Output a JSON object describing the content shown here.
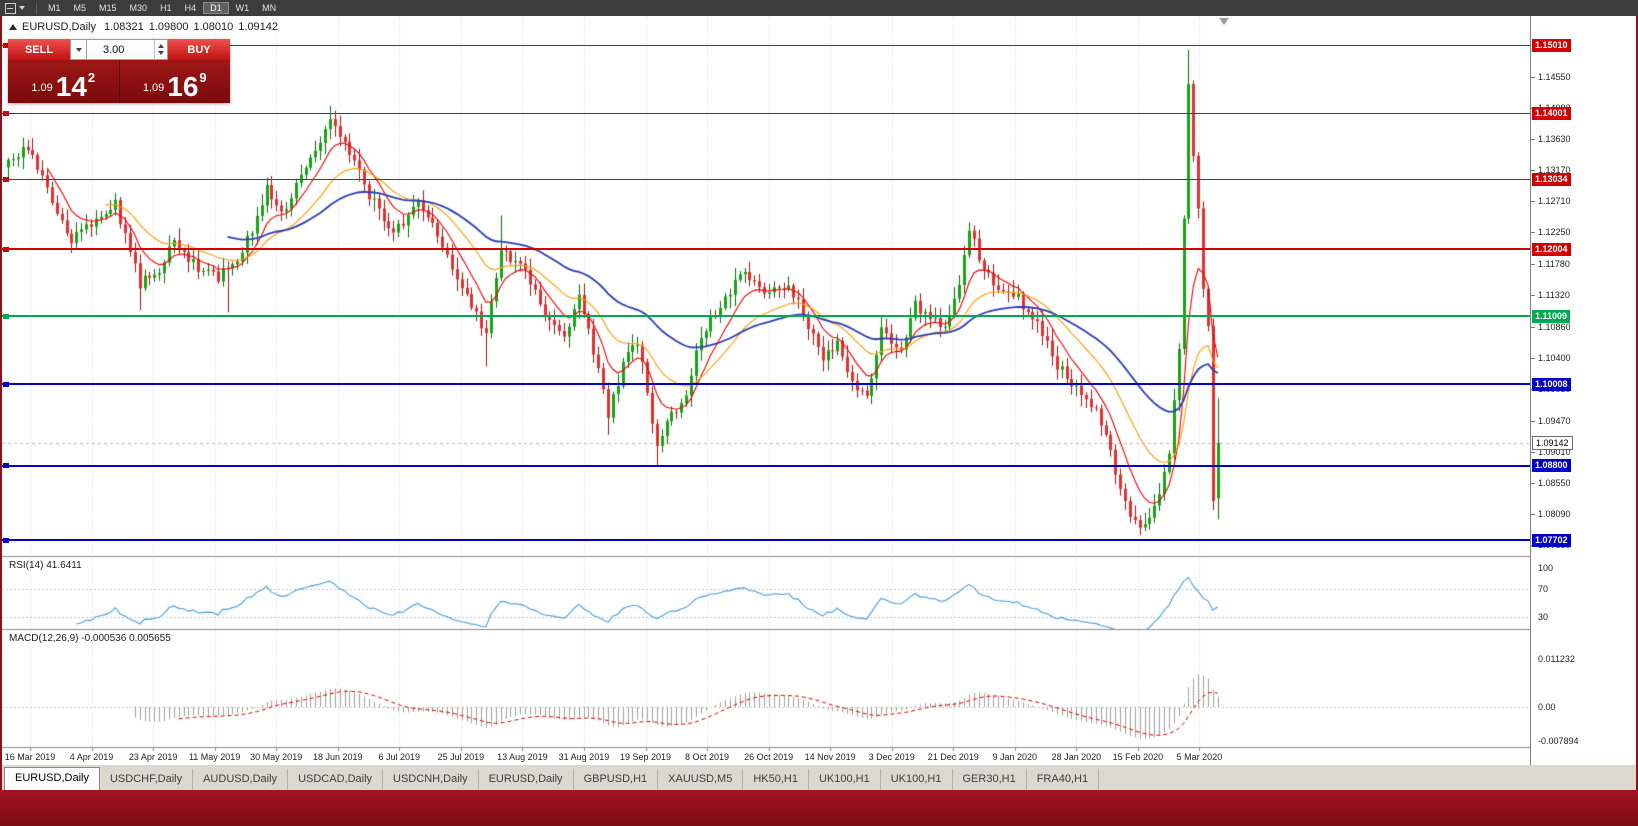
{
  "window": {
    "frame_color": "#8e1119"
  },
  "toolbar": {
    "timeframes": [
      "M1",
      "M5",
      "M15",
      "M30",
      "H1",
      "H4",
      "D1",
      "W1",
      "MN"
    ],
    "active_timeframe": "D1"
  },
  "chart_header": {
    "symbol": "EURUSD,Daily",
    "open": "1.08321",
    "high": "1.09800",
    "low": "1.08010",
    "close": "1.09142"
  },
  "one_click": {
    "sell_label": "SELL",
    "buy_label": "BUY",
    "volume": "3.00",
    "bid": {
      "prefix": "1.09",
      "big": "14",
      "sup": "2"
    },
    "ask": {
      "prefix": "1.09",
      "big": "16",
      "sup": "9"
    }
  },
  "price_axis": {
    "ticks": [
      "1.14550",
      "1.14090",
      "1.13630",
      "1.13170",
      "1.12710",
      "1.12250",
      "1.11780",
      "1.11320",
      "1.10860",
      "1.10400",
      "1.09930",
      "1.09470",
      "1.09010",
      "1.08550",
      "1.08090",
      "1.07630"
    ],
    "current": "1.09142"
  },
  "date_axis": {
    "labels": [
      "16 Mar 2019",
      "4 Apr 2019",
      "23 Apr 2019",
      "11 May 2019",
      "30 May 2019",
      "18 Jun 2019",
      "6 Jul 2019",
      "25 Jul 2019",
      "13 Aug 2019",
      "31 Aug 2019",
      "19 Sep 2019",
      "8 Oct 2019",
      "26 Oct 2019",
      "14 Nov 2019",
      "3 Dec 2019",
      "21 Dec 2019",
      "9 Jan 2020",
      "28 Jan 2020",
      "15 Feb 2020",
      "5 Mar 2020"
    ]
  },
  "rsi_panel": {
    "title": "RSI(14) 41.6411",
    "axis_labels": [
      "100",
      "70",
      "30"
    ]
  },
  "macd_panel": {
    "title": "MACD(12,26,9) -0.000536 0.005655",
    "axis_labels": [
      "0.011232",
      "0.00",
      "-0.007894"
    ]
  },
  "tabs": [
    "EURUSD,Daily",
    "USDCHF,Daily",
    "AUDUSD,Daily",
    "USDCAD,Daily",
    "USDCNH,Daily",
    "EURUSD,Daily",
    "GBPUSD,H1",
    "XAUUSD,M5",
    "HK50,H1",
    "UK100,H1",
    "UK100,H1",
    "GER30,H1",
    "FRA40,H1"
  ],
  "active_tab": 0,
  "chart_data": {
    "type": "candlestick",
    "symbol": "EURUSD",
    "timeframe": "Daily",
    "n_candles": 249,
    "price_range": [
      1.07469,
      1.15449
    ],
    "last_candle": {
      "open": 1.08321,
      "high": 1.098,
      "low": 1.0801,
      "close": 1.09142
    },
    "current_price": 1.09142,
    "close_anchors": [
      [
        0,
        1.1325
      ],
      [
        4,
        1.135
      ],
      [
        9,
        1.127
      ],
      [
        13,
        1.1215
      ],
      [
        17,
        1.124
      ],
      [
        22,
        1.1268
      ],
      [
        27,
        1.115
      ],
      [
        31,
        1.1172
      ],
      [
        34,
        1.1212
      ],
      [
        38,
        1.1178
      ],
      [
        43,
        1.116
      ],
      [
        47,
        1.1188
      ],
      [
        50,
        1.1225
      ],
      [
        53,
        1.1295
      ],
      [
        56,
        1.125
      ],
      [
        60,
        1.131
      ],
      [
        66,
        1.139
      ],
      [
        69,
        1.1358
      ],
      [
        74,
        1.1282
      ],
      [
        79,
        1.1222
      ],
      [
        84,
        1.1268
      ],
      [
        89,
        1.1208
      ],
      [
        93,
        1.114
      ],
      [
        98,
        1.1078
      ],
      [
        101,
        1.1198
      ],
      [
        106,
        1.1168
      ],
      [
        111,
        1.1092
      ],
      [
        114,
        1.1068
      ],
      [
        117,
        1.1138
      ],
      [
        120,
        1.1052
      ],
      [
        123,
        1.0952
      ],
      [
        126,
        1.1032
      ],
      [
        129,
        1.1062
      ],
      [
        131,
        1.0992
      ],
      [
        133,
        1.0902
      ],
      [
        135,
        1.0942
      ],
      [
        139,
        1.0992
      ],
      [
        142,
        1.1068
      ],
      [
        145,
        1.1108
      ],
      [
        151,
        1.1172
      ],
      [
        155,
        1.1132
      ],
      [
        160,
        1.1152
      ],
      [
        164,
        1.1088
      ],
      [
        167,
        1.1032
      ],
      [
        170,
        1.1068
      ],
      [
        173,
        1.1002
      ],
      [
        176,
        1.0984
      ],
      [
        179,
        1.1078
      ],
      [
        183,
        1.1052
      ],
      [
        186,
        1.1118
      ],
      [
        189,
        1.1098
      ],
      [
        192,
        1.1078
      ],
      [
        195,
        1.1152
      ],
      [
        197,
        1.1232
      ],
      [
        199,
        1.1188
      ],
      [
        203,
        1.1138
      ],
      [
        207,
        1.1128
      ],
      [
        211,
        1.1088
      ],
      [
        215,
        1.1028
      ],
      [
        219,
        1.0998
      ],
      [
        223,
        1.0962
      ],
      [
        226,
        1.0898
      ],
      [
        229,
        1.0822
      ],
      [
        232,
        1.0786
      ],
      [
        234,
        1.0802
      ],
      [
        236,
        1.0838
      ],
      [
        238,
        1.0898
      ],
      [
        240,
        1.1058
      ],
      [
        241,
        1.1238
      ],
      [
        242,
        1.1448
      ],
      [
        243,
        1.1338
      ],
      [
        244,
        1.1268
      ],
      [
        245,
        1.1148
      ],
      [
        246,
        1.108
      ],
      [
        247,
        1.0832
      ],
      [
        248,
        1.09142
      ]
    ],
    "wick_overrides": [
      {
        "i": 4,
        "high": 1.1362
      },
      {
        "i": 27,
        "low": 1.111
      },
      {
        "i": 45,
        "low": 1.1107
      },
      {
        "i": 66,
        "high": 1.1412
      },
      {
        "i": 98,
        "low": 1.1027
      },
      {
        "i": 101,
        "high": 1.125
      },
      {
        "i": 123,
        "low": 1.0926
      },
      {
        "i": 133,
        "low": 1.0879
      },
      {
        "i": 197,
        "high": 1.124
      },
      {
        "i": 232,
        "low": 1.0778
      },
      {
        "i": 242,
        "high": 1.1495
      },
      {
        "i": 247,
        "low": 1.0815
      }
    ],
    "horizontal_lines": [
      {
        "price": 1.1501,
        "color": "#d40000",
        "width": 1
      },
      {
        "price": 1.14001,
        "color": "#d40000",
        "width": 1
      },
      {
        "price": 1.13034,
        "color": "#d40000",
        "width": 1
      },
      {
        "price": 1.12004,
        "color": "#d40000",
        "width": 2
      },
      {
        "price": 1.11009,
        "color": "#00a84f",
        "width": 2
      },
      {
        "price": 1.10008,
        "color": "#0000c8",
        "width": 2
      },
      {
        "price": 1.088,
        "color": "#0000c8",
        "width": 2
      },
      {
        "price": 1.07702,
        "color": "#0000c8",
        "width": 2
      }
    ],
    "moving_averages": [
      {
        "period": 8,
        "color": "#f20000"
      },
      {
        "period": 20,
        "color": "#ff9c00"
      },
      {
        "period": 45,
        "color": "#2a3db4"
      }
    ],
    "colors": {
      "up": "#17a317",
      "up_border": "#0c6e0c",
      "down": "#e23030",
      "down_border": "#a81414"
    },
    "indicators": {
      "rsi": {
        "period": 14,
        "value": 41.6411,
        "levels": [
          30,
          70
        ],
        "color": "#4a9ede"
      },
      "macd": {
        "fast": 12,
        "slow": 26,
        "signal": 9,
        "main_value": -0.000536,
        "signal_value": 0.005655,
        "histogram_color": "#a0a0a0",
        "signal_color": "#e00000"
      }
    },
    "grid": {
      "vertical_gridlines": true
    }
  }
}
